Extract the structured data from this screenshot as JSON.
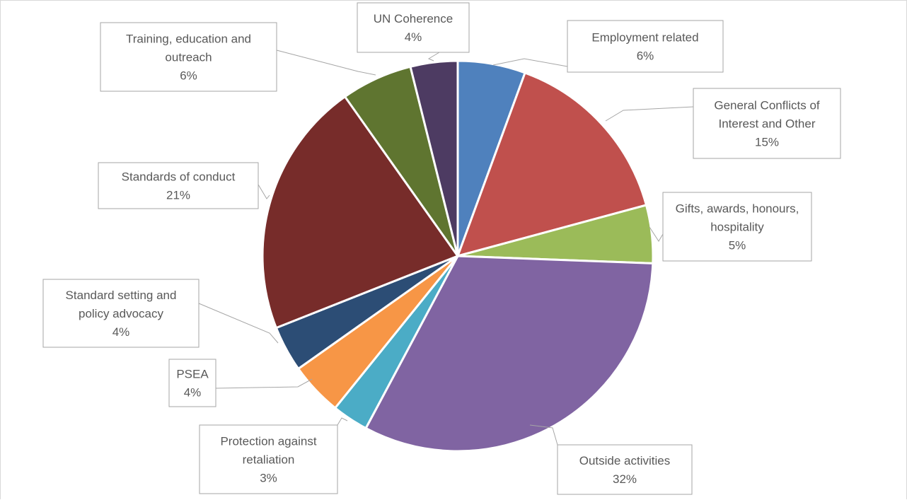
{
  "chart_data": {
    "type": "pie",
    "title": "",
    "start_angle_deg": 0,
    "direction": "clockwise",
    "slices": [
      {
        "name": "Employment related",
        "percent_label": "6%",
        "value": 5.6,
        "color": "#4f81bd",
        "label_lines": [
          "Employment related",
          "6%"
        ]
      },
      {
        "name": "General Conflicts of Interest and Other",
        "percent_label": "15%",
        "value": 15.2,
        "color": "#c0504d",
        "label_lines": [
          "General Conflicts of",
          "Interest and Other",
          "15%"
        ]
      },
      {
        "name": "Gifts, awards, honours, hospitality",
        "percent_label": "5%",
        "value": 4.8,
        "color": "#9bbb59",
        "label_lines": [
          "Gifts, awards, honours,",
          "hospitality",
          "5%"
        ]
      },
      {
        "name": "Outside activities",
        "percent_label": "32%",
        "value": 32.2,
        "color": "#8064a2",
        "label_lines": [
          "Outside activities",
          "32%"
        ]
      },
      {
        "name": "Protection against retaliation",
        "percent_label": "3%",
        "value": 3.0,
        "color": "#4bacc6",
        "label_lines": [
          "Protection against",
          "retaliation",
          "3%"
        ]
      },
      {
        "name": "PSEA",
        "percent_label": "4%",
        "value": 4.4,
        "color": "#f79646",
        "label_lines": [
          "PSEA",
          "4%"
        ]
      },
      {
        "name": "Standard setting and policy advocacy",
        "percent_label": "4%",
        "value": 3.8,
        "color": "#2c4d75",
        "label_lines": [
          "Standard setting and",
          "policy advocacy",
          "4%"
        ]
      },
      {
        "name": "Standards of conduct",
        "percent_label": "21%",
        "value": 21.2,
        "color": "#772c2a",
        "label_lines": [
          "Standards of conduct",
          "21%"
        ]
      },
      {
        "name": "Training, education and outreach",
        "percent_label": "6%",
        "value": 5.9,
        "color": "#5f7530",
        "label_lines": [
          "Training, education and",
          "outreach",
          "6%"
        ]
      },
      {
        "name": "UN Coherence",
        "percent_label": "4%",
        "value": 3.9,
        "color": "#4d3b62",
        "label_lines": [
          "UN Coherence",
          "4%"
        ]
      }
    ],
    "legend": "none",
    "data_labels": "callout boxes with category name and percentage"
  }
}
